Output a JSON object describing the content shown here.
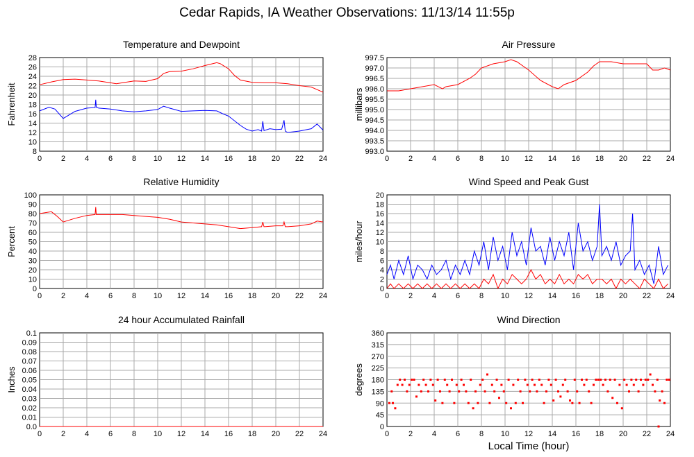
{
  "page_title": "Cedar Rapids, IA Weather Observations: 11/13/14 11:55p",
  "shared_xlabel": "Local Time (hour)",
  "colors": {
    "red": "#ff0000",
    "blue": "#0000ff",
    "grid": "#a8a8a8"
  },
  "chart_data": [
    {
      "id": "temp",
      "type": "line",
      "title": "Temperature and Dewpoint",
      "ylabel": "Fahrenheit",
      "xlim": [
        0,
        24
      ],
      "xticks": [
        0,
        2,
        4,
        6,
        8,
        10,
        12,
        14,
        16,
        18,
        20,
        22,
        24
      ],
      "ylim": [
        8,
        28
      ],
      "yticks": [
        "8",
        "10",
        "12",
        "14",
        "16",
        "18",
        "20",
        "22",
        "24",
        "26",
        "28"
      ],
      "series": [
        {
          "color": "#ff0000",
          "x": [
            0,
            1,
            2,
            3,
            4,
            5,
            6,
            6.5,
            7,
            8,
            9,
            10,
            10.5,
            11,
            12,
            13,
            14,
            15,
            15.3,
            16,
            16.5,
            17,
            18,
            19,
            20,
            21,
            22,
            23,
            24
          ],
          "y": [
            22.2,
            22.8,
            23.3,
            23.4,
            23.2,
            23.0,
            22.6,
            22.4,
            22.6,
            23.0,
            22.9,
            23.5,
            24.6,
            25.0,
            25.1,
            25.6,
            26.3,
            26.9,
            26.7,
            25.6,
            24.2,
            23.2,
            22.7,
            22.6,
            22.6,
            22.4,
            22.0,
            21.7,
            20.6
          ]
        },
        {
          "color": "#0000ff",
          "x": [
            0,
            0.8,
            1.3,
            2,
            3,
            4,
            4.7,
            4.75,
            4.8,
            5,
            6,
            7,
            8,
            9,
            10,
            10.5,
            11,
            12,
            13,
            14,
            15,
            15.5,
            16,
            17,
            17.5,
            18,
            18.5,
            18.8,
            18.9,
            19,
            19.5,
            20,
            20.5,
            20.7,
            20.8,
            21,
            22,
            23,
            23.5,
            24
          ],
          "y": [
            16.6,
            17.4,
            17.0,
            15.0,
            16.5,
            17.2,
            17.3,
            19.0,
            17.4,
            17.2,
            17.0,
            16.6,
            16.4,
            16.6,
            16.9,
            17.6,
            17.2,
            16.5,
            16.6,
            16.7,
            16.6,
            16.0,
            15.5,
            13.5,
            12.7,
            12.3,
            12.6,
            12.3,
            14.4,
            12.4,
            12.8,
            12.6,
            12.7,
            14.6,
            12.3,
            12.0,
            12.3,
            12.8,
            13.8,
            12.5
          ]
        }
      ]
    },
    {
      "id": "press",
      "type": "line",
      "title": "Air Pressure",
      "ylabel": "millibars",
      "xlim": [
        0,
        24
      ],
      "xticks": [
        0,
        2,
        4,
        6,
        8,
        10,
        12,
        14,
        16,
        18,
        20,
        22,
        24
      ],
      "ylim": [
        993.0,
        997.5
      ],
      "yticks": [
        "993.0",
        "993.5",
        "994.0",
        "994.5",
        "995.0",
        "995.5",
        "996.0",
        "996.5",
        "997.0",
        "997.5"
      ],
      "series": [
        {
          "color": "#ff0000",
          "x": [
            0,
            1,
            2,
            3,
            4,
            4.7,
            5,
            6,
            7,
            7.5,
            8,
            9,
            10,
            10.5,
            11,
            12,
            13,
            14,
            14.5,
            15,
            16,
            17,
            17.5,
            18,
            19,
            20,
            21,
            22,
            22.5,
            23,
            23.5,
            24
          ],
          "y": [
            995.9,
            995.9,
            996.0,
            996.1,
            996.2,
            996.0,
            996.1,
            996.2,
            996.5,
            996.7,
            997.0,
            997.2,
            997.3,
            997.4,
            997.3,
            996.9,
            996.4,
            996.1,
            996.0,
            996.2,
            996.4,
            996.8,
            997.1,
            997.3,
            997.3,
            997.2,
            997.2,
            997.2,
            996.9,
            996.9,
            997.0,
            996.9
          ]
        }
      ]
    },
    {
      "id": "rh",
      "type": "line",
      "title": "Relative Humidity",
      "ylabel": "Percent",
      "xlim": [
        0,
        24
      ],
      "xticks": [
        0,
        2,
        4,
        6,
        8,
        10,
        12,
        14,
        16,
        18,
        20,
        22,
        24
      ],
      "ylim": [
        0,
        100
      ],
      "yticks": [
        "0",
        "10",
        "20",
        "30",
        "40",
        "50",
        "60",
        "70",
        "80",
        "90",
        "100"
      ],
      "series": [
        {
          "color": "#ff0000",
          "x": [
            0,
            1,
            1.5,
            2,
            3,
            4,
            4.7,
            4.75,
            4.8,
            5,
            6,
            7,
            8,
            9,
            10,
            11,
            12,
            13,
            14,
            15,
            16,
            17,
            18,
            18.8,
            18.9,
            19,
            20,
            20.6,
            20.7,
            20.8,
            21,
            22,
            23,
            23.5,
            24
          ],
          "y": [
            80,
            82,
            77,
            71,
            75,
            78,
            79,
            87,
            79,
            79,
            79,
            79,
            78,
            77,
            76,
            74,
            71,
            70,
            69,
            68,
            66,
            64,
            65,
            66,
            71,
            66,
            67,
            67,
            71,
            66,
            66,
            67,
            69,
            72,
            71
          ]
        }
      ]
    },
    {
      "id": "wind",
      "type": "line",
      "title": "Wind Speed and Peak Gust",
      "ylabel": "miles/hour",
      "xlim": [
        0,
        24
      ],
      "xticks": [
        0,
        2,
        4,
        6,
        8,
        10,
        12,
        14,
        16,
        18,
        20,
        22,
        24
      ],
      "ylim": [
        0,
        20
      ],
      "yticks": [
        "0",
        "2",
        "4",
        "6",
        "8",
        "10",
        "12",
        "14",
        "16",
        "18",
        "20"
      ],
      "series": [
        {
          "color": "#0000ff",
          "x": [
            0,
            0.3,
            0.6,
            1,
            1.4,
            1.8,
            2.2,
            2.6,
            3,
            3.4,
            3.8,
            4.2,
            4.6,
            5,
            5.4,
            5.8,
            6.2,
            6.6,
            7,
            7.4,
            7.8,
            8.2,
            8.6,
            9,
            9.4,
            9.8,
            10.2,
            10.6,
            11,
            11.4,
            11.8,
            12.2,
            12.6,
            13,
            13.4,
            13.8,
            14.2,
            14.6,
            15,
            15.4,
            15.8,
            16.2,
            16.6,
            17,
            17.4,
            17.8,
            18,
            18.2,
            18.6,
            19,
            19.4,
            19.8,
            20.2,
            20.6,
            20.8,
            21,
            21.4,
            21.8,
            22.2,
            22.6,
            23,
            23.4,
            23.8
          ],
          "y": [
            3,
            5,
            2,
            6,
            3,
            7,
            2,
            5,
            4,
            2,
            5,
            3,
            4,
            6,
            2,
            5,
            3,
            6,
            3,
            8,
            5,
            10,
            4,
            11,
            6,
            9,
            4,
            12,
            7,
            10,
            5,
            13,
            8,
            9,
            5,
            11,
            6,
            10,
            7,
            12,
            4,
            14,
            8,
            10,
            6,
            9,
            18,
            7,
            9,
            6,
            10,
            5,
            7,
            8,
            16,
            4,
            6,
            3,
            5,
            1,
            9,
            3,
            5
          ]
        },
        {
          "color": "#ff0000",
          "x": [
            0,
            0.3,
            0.6,
            1,
            1.4,
            1.8,
            2.2,
            2.6,
            3,
            3.4,
            3.8,
            4.2,
            4.6,
            5,
            5.4,
            5.8,
            6.2,
            6.6,
            7,
            7.4,
            7.8,
            8.2,
            8.6,
            9,
            9.4,
            9.8,
            10.2,
            10.6,
            11,
            11.4,
            11.8,
            12.2,
            12.6,
            13,
            13.4,
            13.8,
            14.2,
            14.6,
            15,
            15.4,
            15.8,
            16.2,
            16.6,
            17,
            17.4,
            17.8,
            18.2,
            18.6,
            19,
            19.4,
            19.8,
            20.2,
            20.6,
            21,
            21.4,
            21.8,
            22.2,
            22.6,
            23,
            23.4,
            23.8
          ],
          "y": [
            0,
            1,
            0,
            1,
            0,
            1,
            0,
            1,
            0,
            1,
            0,
            1,
            0,
            1,
            0,
            1,
            0,
            1,
            0,
            1,
            0,
            2,
            1,
            3,
            0,
            2,
            1,
            3,
            2,
            1,
            2,
            4,
            2,
            3,
            1,
            2,
            1,
            3,
            1,
            2,
            1,
            3,
            2,
            3,
            1,
            2,
            2,
            1,
            2,
            0,
            2,
            1,
            2,
            1,
            0,
            2,
            1,
            0,
            2,
            0,
            1
          ]
        }
      ]
    },
    {
      "id": "rain",
      "type": "line",
      "title": "24 hour Accumulated Rainfall",
      "ylabel": "Inches",
      "xlim": [
        0,
        24
      ],
      "xticks": [
        0,
        2,
        4,
        6,
        8,
        10,
        12,
        14,
        16,
        18,
        20,
        22,
        24
      ],
      "ylim": [
        0,
        0.1
      ],
      "yticks": [
        "0.0",
        "0.01",
        "0.02",
        "0.03",
        "0.04",
        "0.05",
        "0.06",
        "0.07",
        "0.08",
        "0.09",
        "0.1"
      ],
      "series": [
        {
          "color": "#ff0000",
          "x": [
            0,
            24
          ],
          "y": [
            0,
            0
          ]
        }
      ]
    },
    {
      "id": "dir",
      "type": "scatter",
      "title": "Wind Direction",
      "ylabel": "degrees",
      "xlim": [
        0,
        24
      ],
      "xticks": [
        0,
        2,
        4,
        6,
        8,
        10,
        12,
        14,
        16,
        18,
        20,
        22,
        24
      ],
      "ylim": [
        0,
        360
      ],
      "yticks": [
        "0",
        "45",
        "90",
        "135",
        "180",
        "225",
        "270",
        "315",
        "360"
      ],
      "series": [
        {
          "color": "#ff0000",
          "x": [
            0.2,
            0.4,
            0.5,
            0.7,
            0.9,
            1.1,
            1.3,
            1.5,
            1.7,
            1.9,
            2.1,
            2.3,
            2.5,
            2.7,
            2.9,
            3.1,
            3.3,
            3.5,
            3.7,
            3.9,
            4.1,
            4.3,
            4.5,
            4.7,
            4.9,
            5.1,
            5.3,
            5.5,
            5.7,
            5.9,
            6.1,
            6.3,
            6.5,
            6.7,
            6.9,
            7.1,
            7.3,
            7.5,
            7.7,
            7.9,
            8.1,
            8.3,
            8.5,
            8.7,
            8.9,
            9.1,
            9.3,
            9.5,
            9.7,
            9.9,
            10.1,
            10.3,
            10.5,
            10.7,
            10.9,
            11.1,
            11.3,
            11.5,
            11.7,
            11.9,
            12.1,
            12.3,
            12.5,
            12.7,
            12.9,
            13.1,
            13.3,
            13.5,
            13.7,
            13.9,
            14.1,
            14.3,
            14.5,
            14.7,
            14.9,
            15.1,
            15.3,
            15.5,
            15.7,
            15.9,
            16.1,
            16.3,
            16.5,
            16.7,
            16.9,
            17.1,
            17.3,
            17.5,
            17.7,
            17.9,
            18.1,
            18.3,
            18.5,
            18.7,
            18.9,
            19.1,
            19.3,
            19.5,
            19.7,
            19.9,
            20.1,
            20.3,
            20.5,
            20.7,
            20.9,
            21.1,
            21.3,
            21.5,
            21.7,
            21.9,
            22.1,
            22.3,
            22.5,
            22.7,
            22.9,
            23.0,
            23.1,
            23.3,
            23.5,
            23.7,
            23.9
          ],
          "y": [
            90,
            135,
            90,
            70,
            160,
            180,
            160,
            180,
            135,
            160,
            180,
            180,
            115,
            160,
            135,
            180,
            160,
            135,
            180,
            160,
            100,
            180,
            135,
            90,
            180,
            160,
            135,
            180,
            90,
            160,
            135,
            180,
            160,
            135,
            90,
            180,
            70,
            135,
            90,
            160,
            180,
            135,
            200,
            90,
            160,
            135,
            180,
            110,
            160,
            135,
            90,
            180,
            70,
            160,
            90,
            180,
            135,
            90,
            180,
            160,
            135,
            180,
            160,
            135,
            180,
            160,
            90,
            135,
            180,
            160,
            100,
            180,
            135,
            115,
            160,
            180,
            135,
            100,
            90,
            180,
            135,
            90,
            180,
            160,
            180,
            135,
            90,
            160,
            180,
            180,
            180,
            160,
            180,
            135,
            180,
            110,
            180,
            90,
            160,
            70,
            180,
            160,
            135,
            180,
            160,
            180,
            135,
            180,
            160,
            180,
            180,
            200,
            160,
            135,
            180,
            0,
            100,
            135,
            90,
            180,
            180
          ]
        }
      ]
    }
  ]
}
